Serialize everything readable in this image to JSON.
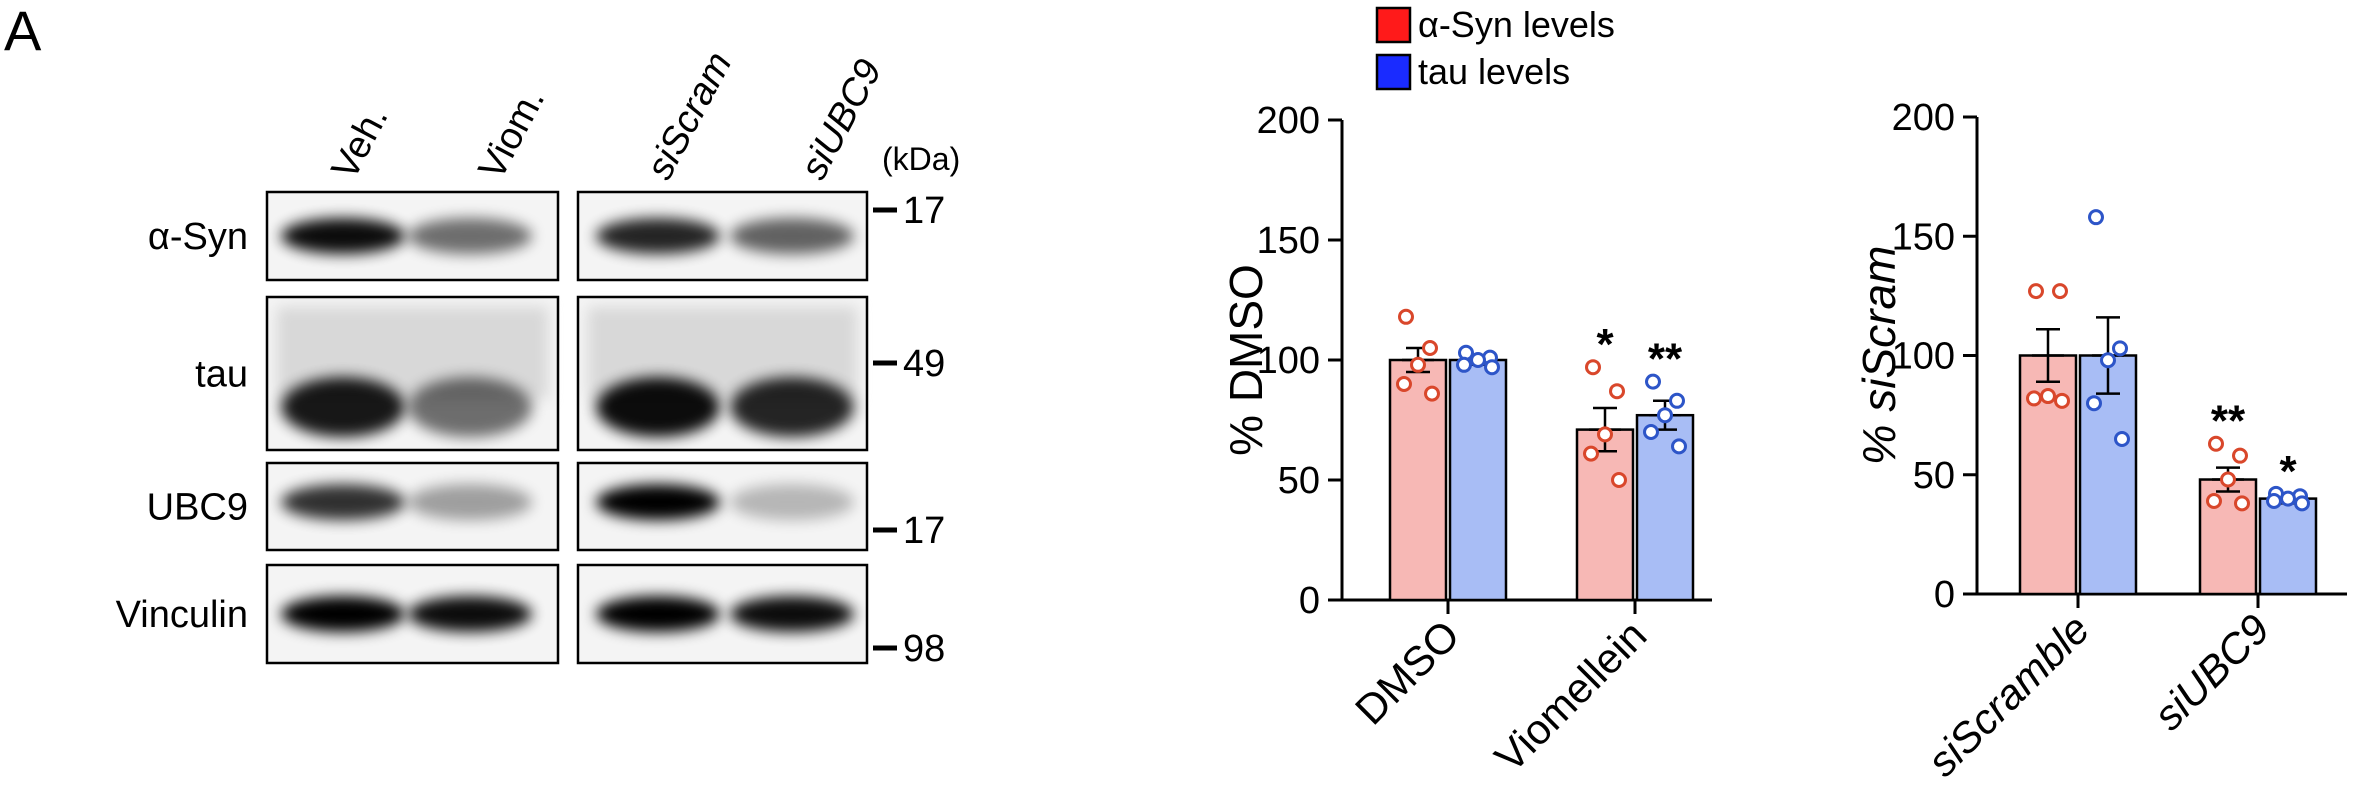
{
  "panel_label": "A",
  "blot": {
    "lanes": [
      "Veh.",
      "Viom.",
      "siScram",
      "siUBC9"
    ],
    "kda_label": "(kDa)",
    "rows": [
      {
        "protein": "α-Syn",
        "marker": 17
      },
      {
        "protein": "tau",
        "marker": 49
      },
      {
        "protein": "UBC9",
        "marker": 17
      },
      {
        "protein": "Vinculin",
        "marker": 98
      }
    ]
  },
  "chart_data": [
    {
      "type": "bar",
      "ylabel": "% DMSO",
      "categories": [
        "DMSO",
        "Viomellein"
      ],
      "ylim": [
        0,
        200
      ],
      "yticks": [
        0,
        50,
        100,
        150,
        200
      ],
      "series": [
        {
          "name": "α-Syn levels",
          "color": "#ff1a1a",
          "bar_color": "#f7b8b5",
          "point_color": "#d9472b",
          "values": [
            100,
            71
          ],
          "errors": [
            5,
            9
          ],
          "points": [
            [
              118,
              105,
              98,
              90,
              86
            ],
            [
              97,
              87,
              69,
              61,
              50
            ]
          ],
          "significance": [
            null,
            "*"
          ]
        },
        {
          "name": "tau levels",
          "color": "#1a2bff",
          "bar_color": "#a8bdf5",
          "point_color": "#2d55c8",
          "values": [
            100,
            77
          ],
          "errors": [
            2,
            6
          ],
          "points": [
            [
              103,
              101,
              100,
              98,
              97
            ],
            [
              91,
              83,
              77,
              70,
              64
            ]
          ],
          "significance": [
            null,
            "**"
          ]
        }
      ]
    },
    {
      "type": "bar",
      "ylabel": "% siScram",
      "categories": [
        "siScramble",
        "siUBC9"
      ],
      "ylim": [
        0,
        200
      ],
      "yticks": [
        0,
        50,
        100,
        150,
        200
      ],
      "series": [
        {
          "name": "α-Syn levels",
          "color": "#ff1a1a",
          "bar_color": "#f7b8b5",
          "point_color": "#d9472b",
          "values": [
            100,
            48
          ],
          "errors": [
            11,
            5
          ],
          "points": [
            [
              127,
              127,
              83,
              82,
              81
            ],
            [
              63,
              58,
              48,
              39,
              38
            ]
          ],
          "significance": [
            null,
            "**"
          ]
        },
        {
          "name": "tau levels",
          "color": "#1a2bff",
          "bar_color": "#a8bdf5",
          "point_color": "#2d55c8",
          "values": [
            100,
            40
          ],
          "errors": [
            16,
            2
          ],
          "points": [
            [
              158,
              103,
              98,
              80,
              65
            ],
            [
              42,
              41,
              40,
              39,
              38
            ]
          ],
          "significance": [
            null,
            "*"
          ]
        }
      ]
    }
  ]
}
